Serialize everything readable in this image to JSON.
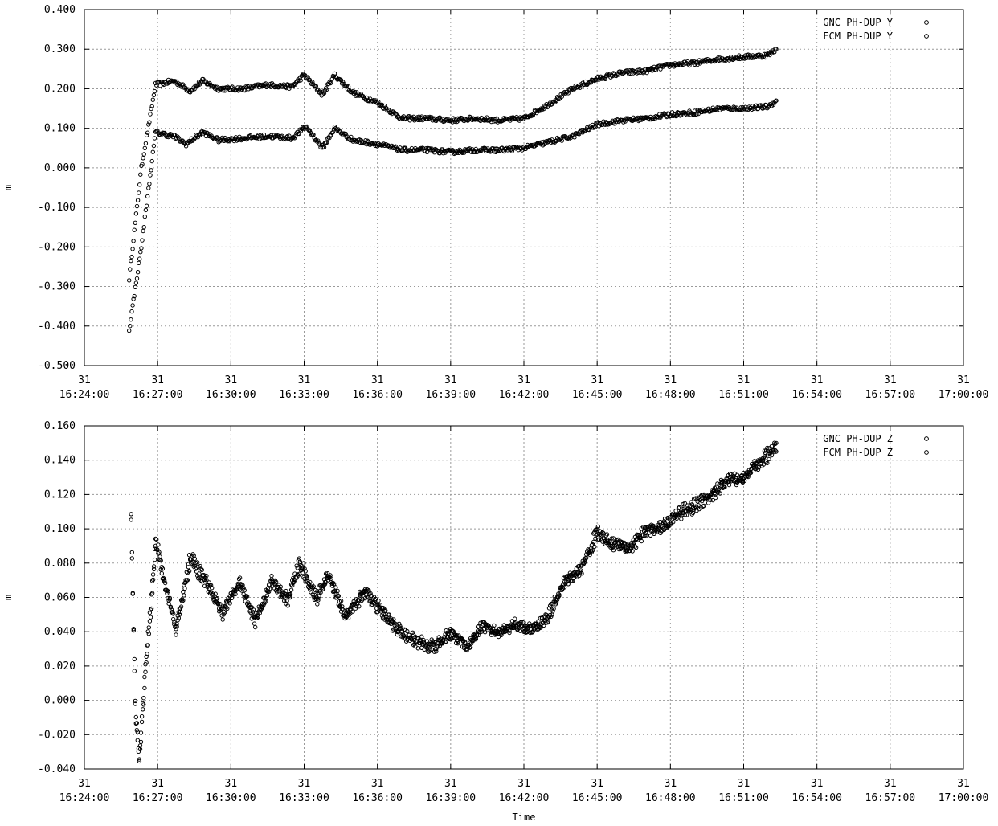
{
  "chart_data": [
    {
      "type": "scatter",
      "ylabel": "m",
      "xlabel": "",
      "xlim": [
        "31 16:24:00",
        "31 17:00:00"
      ],
      "ylim": [
        -0.5,
        0.4
      ],
      "grid": true,
      "legend_position": "top-right",
      "yticks": [
        "0.400",
        "0.300",
        "0.200",
        "0.100",
        "0.000",
        "-0.100",
        "-0.200",
        "-0.300",
        "-0.400",
        "-0.500"
      ],
      "xticks_day": [
        "31",
        "31",
        "31",
        "31",
        "31",
        "31",
        "31",
        "31",
        "31",
        "31",
        "31",
        "31",
        "31"
      ],
      "xticks_time": [
        "16:24:00",
        "16:27:00",
        "16:30:00",
        "16:33:00",
        "16:36:00",
        "16:39:00",
        "16:42:00",
        "16:45:00",
        "16:48:00",
        "16:51:00",
        "16:54:00",
        "16:57:00",
        "17:00:00"
      ],
      "series": [
        {
          "name": "GNC PH-DUP Y",
          "x": [
            "16:25:50",
            "16:26:20",
            "16:26:55",
            "16:27:40",
            "16:28:20",
            "16:28:50",
            "16:29:30",
            "16:30:30",
            "16:31:30",
            "16:32:30",
            "16:33:00",
            "16:33:45",
            "16:34:15",
            "16:35:00",
            "16:36:00",
            "16:37:00",
            "16:38:00",
            "16:39:00",
            "16:40:00",
            "16:41:00",
            "16:42:00",
            "16:43:00",
            "16:44:00",
            "16:45:00",
            "16:46:00",
            "16:47:00",
            "16:48:00",
            "16:49:00",
            "16:50:00",
            "16:51:00",
            "16:52:00",
            "16:52:20"
          ],
          "values": [
            -0.28,
            0.0,
            0.21,
            0.22,
            0.195,
            0.22,
            0.2,
            0.2,
            0.21,
            0.205,
            0.235,
            0.185,
            0.235,
            0.19,
            0.165,
            0.125,
            0.125,
            0.12,
            0.125,
            0.12,
            0.125,
            0.16,
            0.2,
            0.225,
            0.24,
            0.245,
            0.26,
            0.265,
            0.275,
            0.28,
            0.285,
            0.3
          ]
        },
        {
          "name": "FCM PH-DUP Y",
          "x": [
            "16:25:50",
            "16:26:20",
            "16:26:55",
            "16:27:40",
            "16:28:10",
            "16:28:50",
            "16:29:30",
            "16:30:30",
            "16:31:30",
            "16:32:30",
            "16:33:05",
            "16:33:45",
            "16:34:15",
            "16:35:00",
            "16:36:00",
            "16:37:00",
            "16:38:00",
            "16:39:00",
            "16:40:00",
            "16:41:00",
            "16:42:00",
            "16:43:00",
            "16:44:00",
            "16:45:00",
            "16:46:00",
            "16:47:00",
            "16:48:00",
            "16:49:00",
            "16:50:00",
            "16:51:00",
            "16:52:00",
            "16:52:20"
          ],
          "values": [
            -0.41,
            -0.2,
            0.09,
            0.08,
            0.06,
            0.09,
            0.07,
            0.075,
            0.08,
            0.075,
            0.105,
            0.05,
            0.1,
            0.07,
            0.06,
            0.045,
            0.045,
            0.04,
            0.045,
            0.045,
            0.05,
            0.065,
            0.08,
            0.11,
            0.12,
            0.125,
            0.135,
            0.14,
            0.15,
            0.15,
            0.155,
            0.17
          ]
        }
      ]
    },
    {
      "type": "scatter",
      "ylabel": "m",
      "xlabel": "Time",
      "xlim": [
        "31 16:24:00",
        "31 17:00:00"
      ],
      "ylim": [
        -0.04,
        0.16
      ],
      "grid": true,
      "legend_position": "top-right",
      "yticks": [
        "0.160",
        "0.140",
        "0.120",
        "0.100",
        "0.080",
        "0.060",
        "0.040",
        "0.020",
        "0.000",
        "-0.020",
        "-0.040"
      ],
      "xticks_day": [
        "31",
        "31",
        "31",
        "31",
        "31",
        "31",
        "31",
        "31",
        "31",
        "31",
        "31",
        "31",
        "31"
      ],
      "xticks_time": [
        "16:24:00",
        "16:27:00",
        "16:30:00",
        "16:33:00",
        "16:36:00",
        "16:39:00",
        "16:42:00",
        "16:45:00",
        "16:48:00",
        "16:51:00",
        "16:54:00",
        "16:57:00",
        "17:00:00"
      ],
      "series": [
        {
          "name": "GNC PH-DUP Z",
          "x": [
            "16:25:55",
            "16:26:05",
            "16:26:15",
            "16:26:30",
            "16:26:45",
            "16:26:55",
            "16:27:45",
            "16:28:20",
            "16:29:00",
            "16:29:40",
            "16:30:20",
            "16:31:00",
            "16:31:40",
            "16:32:20",
            "16:32:50",
            "16:33:30",
            "16:34:00",
            "16:34:40",
            "16:35:30",
            "16:36:20",
            "16:37:00",
            "16:37:40",
            "16:38:20",
            "16:39:00",
            "16:39:40",
            "16:40:20",
            "16:41:00",
            "16:41:40",
            "16:42:20",
            "16:43:00",
            "16:43:40",
            "16:44:20",
            "16:45:00",
            "16:45:40",
            "16:46:20",
            "16:47:00",
            "16:47:40",
            "16:48:20",
            "16:49:00",
            "16:49:40",
            "16:50:20",
            "16:51:00",
            "16:51:40",
            "16:52:20"
          ],
          "values": [
            0.107,
            0.0,
            -0.035,
            0.02,
            0.06,
            0.095,
            0.04,
            0.085,
            0.07,
            0.05,
            0.07,
            0.045,
            0.07,
            0.06,
            0.082,
            0.06,
            0.075,
            0.05,
            0.065,
            0.05,
            0.04,
            0.035,
            0.032,
            0.04,
            0.03,
            0.045,
            0.04,
            0.045,
            0.04,
            0.05,
            0.07,
            0.075,
            0.1,
            0.09,
            0.09,
            0.1,
            0.1,
            0.11,
            0.115,
            0.12,
            0.13,
            0.13,
            0.14,
            0.15
          ]
        },
        {
          "name": "FCM PH-DUP Z",
          "x": [
            "16:25:55",
            "16:26:05",
            "16:26:15",
            "16:26:30",
            "16:26:45",
            "16:26:55",
            "16:27:45",
            "16:28:20",
            "16:29:00",
            "16:29:40",
            "16:30:20",
            "16:31:00",
            "16:31:40",
            "16:32:20",
            "16:32:50",
            "16:33:30",
            "16:34:00",
            "16:34:40",
            "16:35:30",
            "16:36:20",
            "16:37:00",
            "16:37:40",
            "16:38:20",
            "16:39:00",
            "16:39:40",
            "16:40:20",
            "16:41:00",
            "16:41:40",
            "16:42:20",
            "16:43:00",
            "16:43:40",
            "16:44:20",
            "16:45:00",
            "16:45:40",
            "16:46:20",
            "16:47:00",
            "16:47:40",
            "16:48:20",
            "16:49:00",
            "16:49:40",
            "16:50:20",
            "16:51:00",
            "16:51:40",
            "16:52:20"
          ],
          "values": [
            0.104,
            -0.005,
            -0.037,
            0.015,
            0.055,
            0.09,
            0.042,
            0.08,
            0.068,
            0.052,
            0.068,
            0.048,
            0.068,
            0.058,
            0.078,
            0.058,
            0.072,
            0.048,
            0.062,
            0.048,
            0.038,
            0.033,
            0.03,
            0.038,
            0.032,
            0.043,
            0.038,
            0.043,
            0.042,
            0.048,
            0.068,
            0.078,
            0.095,
            0.092,
            0.088,
            0.098,
            0.102,
            0.108,
            0.112,
            0.118,
            0.128,
            0.128,
            0.138,
            0.145
          ]
        }
      ]
    }
  ]
}
